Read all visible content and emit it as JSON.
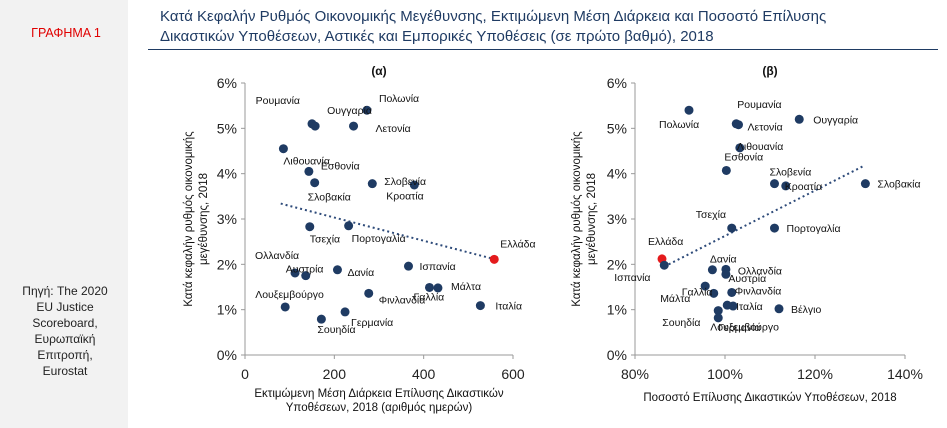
{
  "figure_label": "ΓΡΑΦΗΜΑ 1",
  "title_line1": "Κατά Κεφαλήν Ρυθμός Οικονομικής Μεγέθυνσης, Εκτιμώμενη Μέση Διάρκεια και Ποσοστό Επίλυσης",
  "title_line2": "Δικαστικών Υποθέσεων, Αστικές και Εμπορικές Υποθέσεις (σε πρώτο βαθμό), 2018",
  "source": "Πηγή: The 2020\nEU Justice\nScoreboard,\nΕυρωπαϊκή\nΕπιτροπή,\nEurostat",
  "colors": {
    "point": "#1f3b63",
    "highlight": "#e41a1c",
    "trend": "#2e4b7a",
    "title": "#1f3b63",
    "label": "#e00000"
  },
  "chart_data": [
    {
      "type": "scatter",
      "title": "(α)",
      "xlabel_line1": "Εκτιμώμενη Μέση Διάρκεια Επίλυσης Δικαστικών",
      "xlabel_line2": "Υποθέσεων, 2018 (αριθμός ημερών)",
      "ylabel_line1": "Κατά κεφαλήν ρυθμός οικονομικής",
      "ylabel_line2": "μεγέθυνσης, 2018",
      "xlim": [
        0,
        600
      ],
      "ylim": [
        0,
        0.06
      ],
      "x_ticks": [
        "0",
        "200",
        "400",
        "600"
      ],
      "y_ticks": [
        "0%",
        "1%",
        "2%",
        "3%",
        "4%",
        "5%",
        "6%"
      ],
      "trendline": {
        "x": [
          80,
          560
        ],
        "y": [
          0.0334,
          0.0211
        ],
        "style": "dotted"
      },
      "points": [
        {
          "label": "Ρουμανία",
          "x": 150,
          "y": 0.051
        },
        {
          "label": "Πολωνία",
          "x": 273,
          "y": 0.054
        },
        {
          "label": "Ουγγαρία",
          "x": 157,
          "y": 0.0505
        },
        {
          "label": "Λετονία",
          "x": 243,
          "y": 0.0505
        },
        {
          "label": "Λιθουανία",
          "x": 86,
          "y": 0.0455
        },
        {
          "label": "Εσθονία",
          "x": 143,
          "y": 0.0405
        },
        {
          "label": "Σλοβενία",
          "x": 379,
          "y": 0.0375
        },
        {
          "label": "Σλοβακία",
          "x": 156,
          "y": 0.038
        },
        {
          "label": "Κροατία",
          "x": 285,
          "y": 0.0378
        },
        {
          "label": "Τσεχία",
          "x": 145,
          "y": 0.0283
        },
        {
          "label": "Πορτογαλία",
          "x": 232,
          "y": 0.0285
        },
        {
          "label": "Ελλάδα",
          "x": 558,
          "y": 0.0211,
          "highlight": true
        },
        {
          "label": "Ολλανδία",
          "x": 112,
          "y": 0.0181
        },
        {
          "label": "Αυστρία",
          "x": 136,
          "y": 0.0175
        },
        {
          "label": "Δανία",
          "x": 207,
          "y": 0.0188
        },
        {
          "label": "Ισπανία",
          "x": 366,
          "y": 0.0196
        },
        {
          "label": "Μάλτα",
          "x": 432,
          "y": 0.0148
        },
        {
          "label": "Λουξεμβούργο",
          "x": 90,
          "y": 0.0106
        },
        {
          "label": "Φινλανδία",
          "x": 277,
          "y": 0.0136
        },
        {
          "label": "Γαλλία",
          "x": 413,
          "y": 0.0149
        },
        {
          "label": "Ιταλία",
          "x": 527,
          "y": 0.0109
        },
        {
          "label": "Σουηδία",
          "x": 171,
          "y": 0.0079
        },
        {
          "label": "Γερμανία",
          "x": 224,
          "y": 0.0095
        }
      ]
    },
    {
      "type": "scatter",
      "title": "(β)",
      "xlabel_line1": "Ποσοστό Επίλυσης Δικαστικών Υποθέσεων, 2018",
      "ylabel_line1": "Κατά κεφαλήν ρυθμός οικονομικής",
      "ylabel_line2": "μεγέθυνσης, 2018",
      "xlim": [
        0.8,
        1.4
      ],
      "ylim": [
        0,
        0.06
      ],
      "x_ticks": [
        "80%",
        "100%",
        "120%",
        "140%"
      ],
      "y_ticks": [
        "0%",
        "1%",
        "2%",
        "3%",
        "4%",
        "5%",
        "6%"
      ],
      "trendline": {
        "x": [
          0.865,
          1.31
        ],
        "y": [
          0.0195,
          0.0418
        ],
        "style": "dotted"
      },
      "points": [
        {
          "label": "Πολωνία",
          "x": 0.92,
          "y": 0.054
        },
        {
          "label": "Ρουμανία",
          "x": 1.025,
          "y": 0.051
        },
        {
          "label": "Ουγγαρία",
          "x": 1.165,
          "y": 0.052
        },
        {
          "label": "Λετονία",
          "x": 1.03,
          "y": 0.0508
        },
        {
          "label": "Λιθουανία",
          "x": 1.033,
          "y": 0.0457
        },
        {
          "label": "Εσθονία",
          "x": 1.003,
          "y": 0.0407
        },
        {
          "label": "Σλοβενία",
          "x": 1.11,
          "y": 0.0378
        },
        {
          "label": "Κροατία",
          "x": 1.135,
          "y": 0.0373
        },
        {
          "label": "Σλοβακία",
          "x": 1.312,
          "y": 0.0378
        },
        {
          "label": "Τσεχία",
          "x": 1.015,
          "y": 0.028
        },
        {
          "label": "Πορτογαλία",
          "x": 1.11,
          "y": 0.028
        },
        {
          "label": "Ελλάδα",
          "x": 0.86,
          "y": 0.0212,
          "highlight": true
        },
        {
          "label": "Ισπανία",
          "x": 0.865,
          "y": 0.0198
        },
        {
          "label": "Δανία",
          "x": 1.002,
          "y": 0.0189
        },
        {
          "label": "Ολλανδία",
          "x": 1.002,
          "y": 0.0178
        },
        {
          "label": "Αυστρία",
          "x": 0.972,
          "y": 0.0188
        },
        {
          "label": "Μάλτα",
          "x": 0.956,
          "y": 0.0152
        },
        {
          "label": "Γαλλία",
          "x": 0.975,
          "y": 0.0136
        },
        {
          "label": "Φινλανδία",
          "x": 1.015,
          "y": 0.0138
        },
        {
          "label": "Ιταλία",
          "x": 1.018,
          "y": 0.0108
        },
        {
          "label": "Λουξεμβούργο",
          "x": 0.985,
          "y": 0.0098
        },
        {
          "label": "Βέλγιο",
          "x": 1.12,
          "y": 0.0102
        },
        {
          "label": "Σουηδία",
          "x": 0.985,
          "y": 0.0082
        },
        {
          "label": "Γερμανία",
          "x": 1.005,
          "y": 0.011
        }
      ]
    }
  ]
}
